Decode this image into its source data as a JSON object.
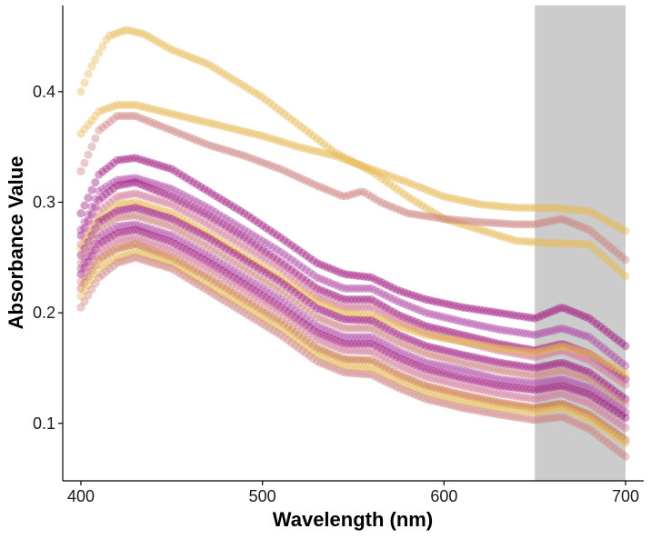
{
  "chart_data": {
    "type": "scatter",
    "xlabel": "Wavelength (nm)",
    "ylabel": "Absorbance Value",
    "xlim": [
      390,
      710
    ],
    "ylim": [
      0.048,
      0.478
    ],
    "x_ticks": [
      400,
      500,
      600,
      700
    ],
    "y_ticks": [
      0.1,
      0.2,
      0.3,
      0.4
    ],
    "x_tick_labels": [
      "400",
      "500",
      "600",
      "700"
    ],
    "y_tick_labels": [
      "0.1",
      "0.2",
      "0.3",
      "0.4"
    ],
    "x_step": 2,
    "grid": false,
    "legend": "none",
    "shaded_region": {
      "x": [
        650,
        700
      ],
      "color": "#cccccc"
    },
    "series": [
      {
        "color": "#e6bb55",
        "points": [
          [
            400,
            0.4
          ],
          [
            405,
            0.42
          ],
          [
            415,
            0.45
          ],
          [
            425,
            0.456
          ],
          [
            435,
            0.452
          ],
          [
            450,
            0.438
          ],
          [
            470,
            0.425
          ],
          [
            500,
            0.395
          ],
          [
            520,
            0.37
          ],
          [
            540,
            0.345
          ],
          [
            560,
            0.328
          ],
          [
            580,
            0.305
          ],
          [
            600,
            0.285
          ],
          [
            620,
            0.275
          ],
          [
            640,
            0.265
          ],
          [
            660,
            0.263
          ],
          [
            680,
            0.262
          ],
          [
            700,
            0.233
          ]
        ]
      },
      {
        "color": "#e6bb55",
        "points": [
          [
            400,
            0.362
          ],
          [
            410,
            0.382
          ],
          [
            420,
            0.388
          ],
          [
            430,
            0.388
          ],
          [
            450,
            0.38
          ],
          [
            470,
            0.372
          ],
          [
            500,
            0.36
          ],
          [
            520,
            0.35
          ],
          [
            540,
            0.342
          ],
          [
            560,
            0.33
          ],
          [
            580,
            0.318
          ],
          [
            600,
            0.305
          ],
          [
            620,
            0.298
          ],
          [
            640,
            0.295
          ],
          [
            660,
            0.295
          ],
          [
            680,
            0.292
          ],
          [
            700,
            0.274
          ]
        ]
      },
      {
        "color": "#cc8380",
        "points": [
          [
            400,
            0.328
          ],
          [
            410,
            0.365
          ],
          [
            420,
            0.378
          ],
          [
            430,
            0.378
          ],
          [
            450,
            0.365
          ],
          [
            470,
            0.352
          ],
          [
            490,
            0.342
          ],
          [
            510,
            0.33
          ],
          [
            530,
            0.315
          ],
          [
            545,
            0.305
          ],
          [
            555,
            0.31
          ],
          [
            565,
            0.3
          ],
          [
            580,
            0.29
          ],
          [
            600,
            0.285
          ],
          [
            620,
            0.282
          ],
          [
            640,
            0.28
          ],
          [
            650,
            0.28
          ],
          [
            665,
            0.285
          ],
          [
            680,
            0.275
          ],
          [
            700,
            0.248
          ]
        ]
      },
      {
        "color": "#a0197e",
        "points": [
          [
            400,
            0.29
          ],
          [
            410,
            0.325
          ],
          [
            420,
            0.338
          ],
          [
            430,
            0.34
          ],
          [
            450,
            0.33
          ],
          [
            470,
            0.31
          ],
          [
            490,
            0.29
          ],
          [
            510,
            0.268
          ],
          [
            530,
            0.245
          ],
          [
            545,
            0.235
          ],
          [
            560,
            0.232
          ],
          [
            575,
            0.22
          ],
          [
            590,
            0.212
          ],
          [
            610,
            0.205
          ],
          [
            630,
            0.2
          ],
          [
            650,
            0.195
          ],
          [
            665,
            0.205
          ],
          [
            680,
            0.195
          ],
          [
            700,
            0.17
          ]
        ]
      },
      {
        "color": "#b04aa6",
        "points": [
          [
            400,
            0.275
          ],
          [
            410,
            0.31
          ],
          [
            420,
            0.32
          ],
          [
            430,
            0.322
          ],
          [
            450,
            0.312
          ],
          [
            470,
            0.295
          ],
          [
            490,
            0.275
          ],
          [
            510,
            0.255
          ],
          [
            530,
            0.232
          ],
          [
            545,
            0.222
          ],
          [
            560,
            0.222
          ],
          [
            575,
            0.21
          ],
          [
            590,
            0.2
          ],
          [
            610,
            0.192
          ],
          [
            630,
            0.185
          ],
          [
            650,
            0.18
          ],
          [
            665,
            0.186
          ],
          [
            680,
            0.178
          ],
          [
            700,
            0.152
          ]
        ]
      },
      {
        "color": "#a0197e",
        "points": [
          [
            400,
            0.27
          ],
          [
            410,
            0.302
          ],
          [
            420,
            0.315
          ],
          [
            430,
            0.318
          ],
          [
            450,
            0.305
          ],
          [
            470,
            0.288
          ],
          [
            490,
            0.268
          ],
          [
            510,
            0.246
          ],
          [
            530,
            0.222
          ],
          [
            545,
            0.212
          ],
          [
            560,
            0.212
          ],
          [
            575,
            0.198
          ],
          [
            590,
            0.188
          ],
          [
            610,
            0.18
          ],
          [
            630,
            0.172
          ],
          [
            650,
            0.166
          ],
          [
            665,
            0.172
          ],
          [
            680,
            0.163
          ],
          [
            700,
            0.14
          ]
        ]
      },
      {
        "color": "#d47a9a",
        "points": [
          [
            400,
            0.262
          ],
          [
            410,
            0.292
          ],
          [
            420,
            0.305
          ],
          [
            430,
            0.308
          ],
          [
            450,
            0.298
          ],
          [
            470,
            0.28
          ],
          [
            490,
            0.26
          ],
          [
            510,
            0.24
          ],
          [
            530,
            0.215
          ],
          [
            545,
            0.205
          ],
          [
            560,
            0.205
          ],
          [
            575,
            0.192
          ],
          [
            590,
            0.182
          ],
          [
            610,
            0.174
          ],
          [
            630,
            0.166
          ],
          [
            650,
            0.16
          ],
          [
            665,
            0.166
          ],
          [
            680,
            0.157
          ],
          [
            700,
            0.135
          ]
        ]
      },
      {
        "color": "#e6bb55",
        "points": [
          [
            400,
            0.258
          ],
          [
            410,
            0.285
          ],
          [
            420,
            0.298
          ],
          [
            430,
            0.3
          ],
          [
            450,
            0.29
          ],
          [
            470,
            0.272
          ],
          [
            490,
            0.252
          ],
          [
            510,
            0.232
          ],
          [
            530,
            0.21
          ],
          [
            545,
            0.2
          ],
          [
            560,
            0.198
          ],
          [
            575,
            0.188
          ],
          [
            590,
            0.18
          ],
          [
            610,
            0.174
          ],
          [
            630,
            0.168
          ],
          [
            650,
            0.164
          ],
          [
            665,
            0.17
          ],
          [
            680,
            0.163
          ],
          [
            700,
            0.145
          ]
        ]
      },
      {
        "color": "#a0197e",
        "points": [
          [
            400,
            0.252
          ],
          [
            410,
            0.282
          ],
          [
            420,
            0.292
          ],
          [
            430,
            0.295
          ],
          [
            450,
            0.285
          ],
          [
            470,
            0.268
          ],
          [
            490,
            0.248
          ],
          [
            510,
            0.228
          ],
          [
            530,
            0.204
          ],
          [
            545,
            0.194
          ],
          [
            560,
            0.193
          ],
          [
            575,
            0.18
          ],
          [
            590,
            0.17
          ],
          [
            610,
            0.162
          ],
          [
            630,
            0.155
          ],
          [
            650,
            0.15
          ],
          [
            665,
            0.155
          ],
          [
            680,
            0.146
          ],
          [
            700,
            0.122
          ]
        ]
      },
      {
        "color": "#cc8380",
        "points": [
          [
            400,
            0.245
          ],
          [
            410,
            0.275
          ],
          [
            420,
            0.286
          ],
          [
            430,
            0.288
          ],
          [
            450,
            0.278
          ],
          [
            470,
            0.26
          ],
          [
            490,
            0.24
          ],
          [
            510,
            0.22
          ],
          [
            530,
            0.196
          ],
          [
            545,
            0.186
          ],
          [
            560,
            0.186
          ],
          [
            575,
            0.173
          ],
          [
            590,
            0.163
          ],
          [
            610,
            0.155
          ],
          [
            630,
            0.148
          ],
          [
            650,
            0.143
          ],
          [
            665,
            0.148
          ],
          [
            680,
            0.14
          ],
          [
            700,
            0.117
          ]
        ]
      },
      {
        "color": "#b04aa6",
        "points": [
          [
            400,
            0.24
          ],
          [
            410,
            0.268
          ],
          [
            420,
            0.278
          ],
          [
            430,
            0.28
          ],
          [
            450,
            0.27
          ],
          [
            470,
            0.252
          ],
          [
            490,
            0.232
          ],
          [
            510,
            0.212
          ],
          [
            530,
            0.188
          ],
          [
            545,
            0.178
          ],
          [
            560,
            0.178
          ],
          [
            575,
            0.165
          ],
          [
            590,
            0.155
          ],
          [
            610,
            0.148
          ],
          [
            630,
            0.14
          ],
          [
            650,
            0.136
          ],
          [
            665,
            0.14
          ],
          [
            680,
            0.132
          ],
          [
            700,
            0.11
          ]
        ]
      },
      {
        "color": "#a0197e",
        "points": [
          [
            400,
            0.235
          ],
          [
            410,
            0.262
          ],
          [
            420,
            0.272
          ],
          [
            430,
            0.275
          ],
          [
            450,
            0.264
          ],
          [
            470,
            0.246
          ],
          [
            490,
            0.226
          ],
          [
            510,
            0.205
          ],
          [
            530,
            0.182
          ],
          [
            545,
            0.172
          ],
          [
            560,
            0.172
          ],
          [
            575,
            0.159
          ],
          [
            590,
            0.149
          ],
          [
            610,
            0.141
          ],
          [
            630,
            0.134
          ],
          [
            650,
            0.13
          ],
          [
            665,
            0.134
          ],
          [
            680,
            0.126
          ],
          [
            700,
            0.105
          ]
        ]
      },
      {
        "color": "#d47a9a",
        "points": [
          [
            400,
            0.228
          ],
          [
            410,
            0.255
          ],
          [
            420,
            0.265
          ],
          [
            430,
            0.268
          ],
          [
            450,
            0.257
          ],
          [
            470,
            0.24
          ],
          [
            490,
            0.22
          ],
          [
            510,
            0.2
          ],
          [
            530,
            0.176
          ],
          [
            545,
            0.166
          ],
          [
            560,
            0.165
          ],
          [
            575,
            0.152
          ],
          [
            590,
            0.142
          ],
          [
            610,
            0.134
          ],
          [
            630,
            0.127
          ],
          [
            650,
            0.122
          ],
          [
            665,
            0.127
          ],
          [
            680,
            0.118
          ],
          [
            700,
            0.096
          ]
        ]
      },
      {
        "color": "#c87040",
        "points": [
          [
            400,
            0.222
          ],
          [
            410,
            0.248
          ],
          [
            420,
            0.258
          ],
          [
            430,
            0.262
          ],
          [
            450,
            0.25
          ],
          [
            470,
            0.232
          ],
          [
            490,
            0.212
          ],
          [
            510,
            0.192
          ],
          [
            530,
            0.168
          ],
          [
            545,
            0.158
          ],
          [
            560,
            0.157
          ],
          [
            575,
            0.144
          ],
          [
            590,
            0.134
          ],
          [
            610,
            0.126
          ],
          [
            630,
            0.119
          ],
          [
            650,
            0.114
          ],
          [
            665,
            0.118
          ],
          [
            680,
            0.108
          ],
          [
            700,
            0.085
          ]
        ]
      },
      {
        "color": "#e6bb55",
        "points": [
          [
            400,
            0.215
          ],
          [
            410,
            0.24
          ],
          [
            420,
            0.25
          ],
          [
            430,
            0.255
          ],
          [
            450,
            0.245
          ],
          [
            470,
            0.225
          ],
          [
            490,
            0.206
          ],
          [
            510,
            0.186
          ],
          [
            530,
            0.162
          ],
          [
            545,
            0.152
          ],
          [
            560,
            0.15
          ],
          [
            575,
            0.138
          ],
          [
            590,
            0.128
          ],
          [
            610,
            0.12
          ],
          [
            630,
            0.114
          ],
          [
            650,
            0.11
          ],
          [
            665,
            0.114
          ],
          [
            680,
            0.104
          ],
          [
            700,
            0.082
          ]
        ]
      },
      {
        "color": "#cc8380",
        "points": [
          [
            400,
            0.205
          ],
          [
            410,
            0.232
          ],
          [
            420,
            0.245
          ],
          [
            430,
            0.25
          ],
          [
            450,
            0.24
          ],
          [
            470,
            0.22
          ],
          [
            490,
            0.2
          ],
          [
            510,
            0.18
          ],
          [
            530,
            0.156
          ],
          [
            545,
            0.146
          ],
          [
            560,
            0.144
          ],
          [
            575,
            0.132
          ],
          [
            590,
            0.122
          ],
          [
            610,
            0.114
          ],
          [
            630,
            0.108
          ],
          [
            650,
            0.103
          ],
          [
            665,
            0.106
          ],
          [
            680,
            0.095
          ],
          [
            700,
            0.07
          ]
        ]
      }
    ]
  }
}
